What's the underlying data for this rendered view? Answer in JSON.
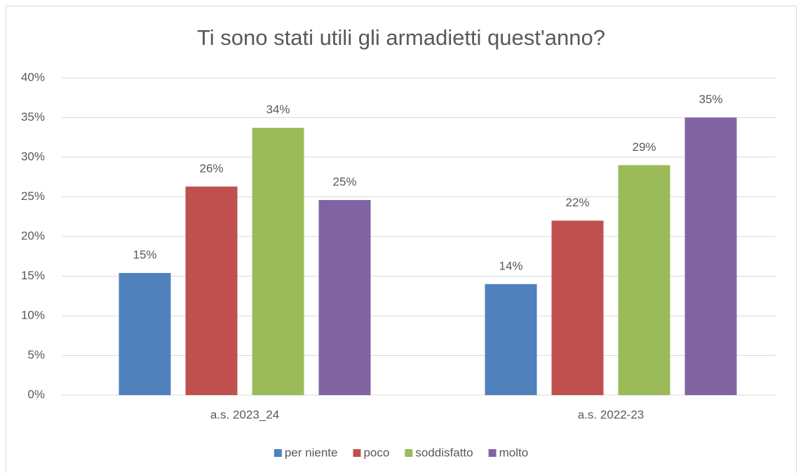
{
  "chart_data": {
    "type": "bar",
    "title": "Ti sono stati utili gli armadietti quest'anno?",
    "categories": [
      "a.s. 2023_24",
      "a.s. 2022-23"
    ],
    "series": [
      {
        "name": "per niente",
        "color": "#4f81bd",
        "values": [
          15.4,
          14
        ],
        "value_labels": [
          "15%",
          "14%"
        ]
      },
      {
        "name": "poco",
        "color": "#c0504d",
        "values": [
          26.3,
          22
        ],
        "value_labels": [
          "26%",
          "22%"
        ]
      },
      {
        "name": "soddisfatto",
        "color": "#9bbb59",
        "values": [
          33.7,
          29
        ],
        "value_labels": [
          "34%",
          "29%"
        ]
      },
      {
        "name": "molto",
        "color": "#8064a2",
        "values": [
          24.6,
          35
        ],
        "value_labels": [
          "25%",
          "35%"
        ]
      }
    ],
    "ylim": [
      0,
      40
    ],
    "yticks": [
      {
        "value": 0,
        "label": "0%"
      },
      {
        "value": 5,
        "label": "5%"
      },
      {
        "value": 10,
        "label": "10%"
      },
      {
        "value": 15,
        "label": "15%"
      },
      {
        "value": 20,
        "label": "20%"
      },
      {
        "value": 25,
        "label": "25%"
      },
      {
        "value": 30,
        "label": "30%"
      },
      {
        "value": 35,
        "label": "35%"
      },
      {
        "value": 40,
        "label": "40%"
      }
    ],
    "grid": true,
    "legend": "bottom"
  }
}
